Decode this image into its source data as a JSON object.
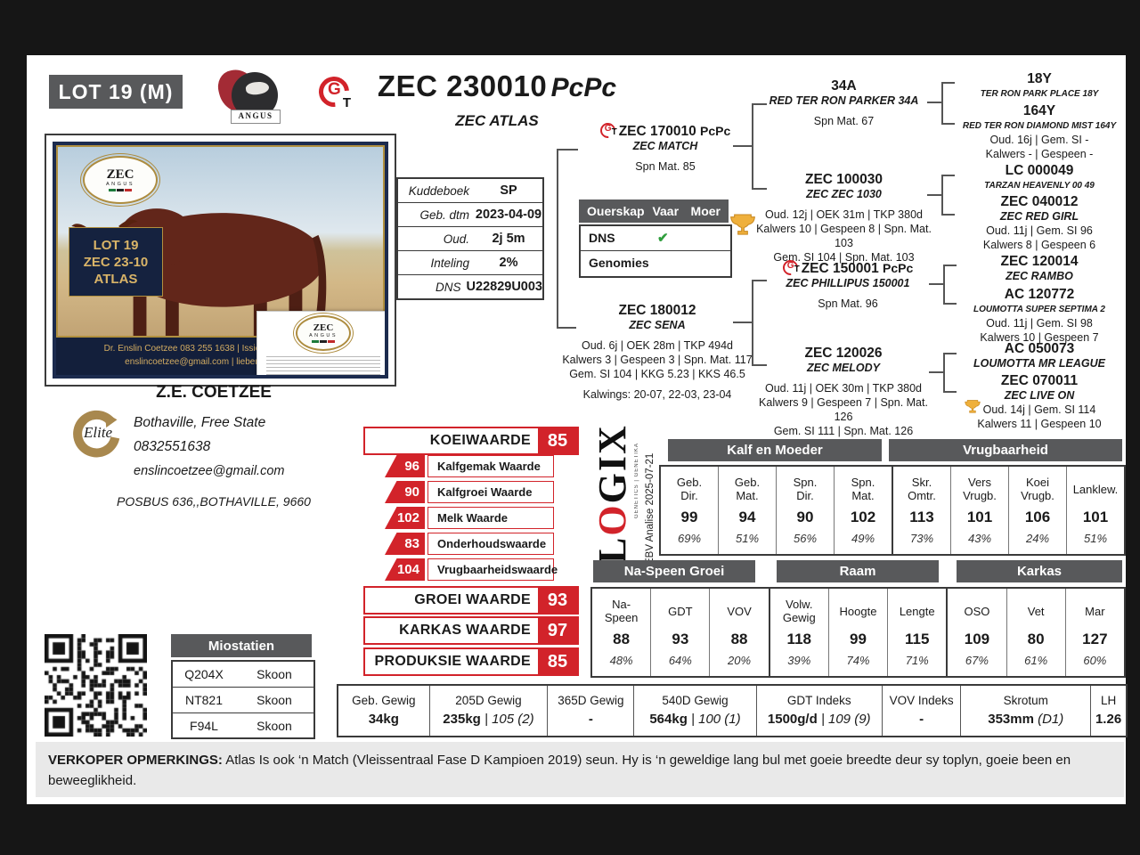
{
  "frame": {
    "lot_label": "LOT 19 (M)"
  },
  "header": {
    "id": "ZEC 230010",
    "suffix": "PcPc",
    "name": "ZEC ATLAS"
  },
  "logos": {
    "angus_banner": "ANGUS",
    "ggt_g": "G",
    "ggt_t": "T",
    "elite": "Elite",
    "zec": "ZEC",
    "zec_sub": "ANGUS"
  },
  "photo": {
    "lot1": "LOT 19",
    "lot2": "ZEC 23-10",
    "lot3": "ATLAS",
    "contact1": "Dr. Enslin Coetzee 083 255 1638  |  Issie Liebenberg 083 98",
    "contact2": "enslincoetzee@gmail.com | liebenic@gmail.com",
    "card_title": "ZEC",
    "card_sub": "ANGUS"
  },
  "kuddeboek": {
    "rows": [
      {
        "label": "Kuddeboek",
        "value": "SP"
      },
      {
        "label": "Geb. dtm",
        "value": "2023-04-09"
      },
      {
        "label": "Oud.",
        "value": "2j 5m"
      },
      {
        "label": "Inteling",
        "value": "2%"
      },
      {
        "label": "DNS",
        "value": "U22829U003"
      }
    ]
  },
  "ouerskap": {
    "h1": "Ouerskap",
    "h2": "Vaar",
    "h3": "Moer",
    "r1": "DNS",
    "r1_check": "✔",
    "r2": "Genomies"
  },
  "breeder": {
    "name": "Z.E. COETZEE",
    "location": "Bothaville, Free State",
    "phone": "0832551638",
    "email": "enslincoetzee@gmail.com",
    "address": "POSBUS  636,,BOTHAVILLE,  9660"
  },
  "pedigree": {
    "sire": {
      "id": "ZEC 170010",
      "suffix": "PcPc",
      "name": "ZEC MATCH",
      "l1": "Spn Mat. 85"
    },
    "dam": {
      "id": "ZEC 180012",
      "name": "ZEC SENA",
      "l1": "Oud. 6j | OEK 28m | TKP 494d",
      "l2": "Kalwers 3 | Gespeen 3 | Spn. Mat. 117",
      "l3": "Gem. SI 104 | KKG 5.23 | KKS 46.5",
      "l4": "Kalwings: 20-07, 22-03, 23-04"
    },
    "ss": {
      "id": "34A",
      "name": "RED TER RON PARKER 34A",
      "l1": "Spn Mat. 67"
    },
    "sd": {
      "id": "ZEC 100030",
      "name": "ZEC ZEC 1030",
      "l1": "Oud. 12j | OEK 31m | TKP 380d",
      "l2": "Kalwers 10 | Gespeen 8 | Spn. Mat. 103",
      "l3": "Gem. SI 104 | Spn. Mat. 103"
    },
    "ds": {
      "id": "ZEC 150001",
      "suffix": "PcPc",
      "name": "ZEC PHILLIPUS 150001",
      "l1": "Spn Mat. 96"
    },
    "dd": {
      "id": "ZEC 120026",
      "name": "ZEC MELODY",
      "l1": "Oud. 11j | OEK 30m | TKP 380d",
      "l2": "Kalwers 9 | Gespeen 7 | Spn. Mat. 126",
      "l3": "Gem. SI 111 | Spn. Mat. 126"
    },
    "sss": {
      "id": "18Y",
      "name": "TER RON PARK PLACE 18Y"
    },
    "ssd": {
      "id": "164Y",
      "name": "RED TER RON DIAMOND MIST 164Y",
      "l1": "Oud. 16j | Gem. SI -",
      "l2": "Kalwers - | Gespeen -"
    },
    "sds": {
      "id": "LC 000049",
      "name": "TARZAN HEAVENLY 00 49"
    },
    "sdd": {
      "id": "ZEC 040012",
      "name": "ZEC RED GIRL",
      "l1": "Oud. 11j | Gem. SI 96",
      "l2": "Kalwers 8 | Gespeen 6"
    },
    "dss": {
      "id": "ZEC 120014",
      "name": "ZEC RAMBO"
    },
    "dsd": {
      "id": "AC 120772",
      "name": "LOUMOTTA SUPER SEPTIMA 2",
      "l1": "Oud. 11j | Gem. SI 98",
      "l2": "Kalwers 10 | Gespeen 7"
    },
    "dds": {
      "id": "AC 050073",
      "name": "LOUMOTTA MR LEAGUE"
    },
    "ddd": {
      "id": "ZEC 070011",
      "name": "ZEC LIVE ON",
      "l1": "Oud. 14j | Gem. SI 114",
      "l2": "Kalwers 11 | Gespeen 10"
    }
  },
  "indexes": {
    "koei_label": "KOEIWAARDE",
    "koei_value": "85",
    "subs": [
      {
        "v": "96",
        "label": "Kalfgemak Waarde"
      },
      {
        "v": "90",
        "label": "Kalfgroei Waarde"
      },
      {
        "v": "102",
        "label": "Melk Waarde"
      },
      {
        "v": "83",
        "label": "Onderhoudswaarde"
      },
      {
        "v": "104",
        "label": "Vrugbaarheidswaarde"
      }
    ],
    "groei_label": "GROEI WAARDE",
    "groei_value": "93",
    "karkas_label": "KARKAS WAARDE",
    "karkas_value": "97",
    "produksie_label": "PRODUKSIE WAARDE",
    "produksie_value": "85"
  },
  "logix": {
    "w1": "L",
    "w2": "O",
    "w3": "GIX",
    "tagline": "GENETICS | GENETIKA",
    "analysis": "EBV Analise 2025-07-21"
  },
  "ebv1": {
    "g1": "Kalf en Moeder",
    "g2": "Vrugbaarheid",
    "cols": [
      {
        "l1": "Geb.",
        "l2": "Dir.",
        "v": "99",
        "p": "69%"
      },
      {
        "l1": "Geb.",
        "l2": "Mat.",
        "v": "94",
        "p": "51%"
      },
      {
        "l1": "Spn.",
        "l2": "Dir.",
        "v": "90",
        "p": "56%"
      },
      {
        "l1": "Spn.",
        "l2": "Mat.",
        "v": "102",
        "p": "49%"
      },
      {
        "l1": "Skr.",
        "l2": "Omtr.",
        "v": "113",
        "p": "73%"
      },
      {
        "l1": "Vers",
        "l2": "Vrugb.",
        "v": "101",
        "p": "43%"
      },
      {
        "l1": "Koei",
        "l2": "Vrugb.",
        "v": "106",
        "p": "24%"
      },
      {
        "l1": "Lanklew.",
        "l2": "",
        "v": "101",
        "p": "51%"
      }
    ]
  },
  "ebv2": {
    "g1": "Na-Speen Groei",
    "g2": "Raam",
    "g3": "Karkas",
    "cols": [
      {
        "l1": "Na-",
        "l2": "Speen",
        "v": "88",
        "p": "48%"
      },
      {
        "l1": "GDT",
        "l2": "",
        "v": "93",
        "p": "64%"
      },
      {
        "l1": "VOV",
        "l2": "",
        "v": "88",
        "p": "20%"
      },
      {
        "l1": "Volw.",
        "l2": "Gewig",
        "v": "118",
        "p": "39%"
      },
      {
        "l1": "Hoogte",
        "l2": "",
        "v": "99",
        "p": "74%"
      },
      {
        "l1": "Lengte",
        "l2": "",
        "v": "115",
        "p": "71%"
      },
      {
        "l1": "OSO",
        "l2": "",
        "v": "109",
        "p": "67%"
      },
      {
        "l1": "Vet",
        "l2": "",
        "v": "80",
        "p": "61%"
      },
      {
        "l1": "Mar",
        "l2": "",
        "v": "127",
        "p": "60%"
      }
    ]
  },
  "weights": {
    "cols": [
      {
        "h": "Geb. Gewig",
        "m": "34kg",
        "s": ""
      },
      {
        "h": "205D Gewig",
        "m": "235kg",
        "s": "| 105 (2)"
      },
      {
        "h": "365D Gewig",
        "m": "-",
        "s": ""
      },
      {
        "h": "540D Gewig",
        "m": "564kg",
        "s": "| 100 (1)"
      },
      {
        "h": "GDT Indeks",
        "m": "1500g/d",
        "s": "| 109 (9)"
      },
      {
        "h": "VOV Indeks",
        "m": "-",
        "s": ""
      },
      {
        "h": "Skrotum",
        "m": "353mm",
        "s": "(D1)"
      },
      {
        "h": "LH",
        "m": "1.26",
        "s": ""
      }
    ]
  },
  "miostatien": {
    "title": "Miostatien",
    "rows": [
      {
        "code": "Q204X",
        "status": "Skoon"
      },
      {
        "code": "NT821",
        "status": "Skoon"
      },
      {
        "code": "F94L",
        "status": "Skoon"
      }
    ]
  },
  "remarks": {
    "label": "VERKOPER OPMERKINGS:",
    "text": " Atlas Is ook ‘n Match (Vleissentraal Fase D Kampioen 2019) seun. Hy is ‘n geweldige lang bul met goeie breedte deur sy toplyn, goeie been en beweeglikheid."
  }
}
